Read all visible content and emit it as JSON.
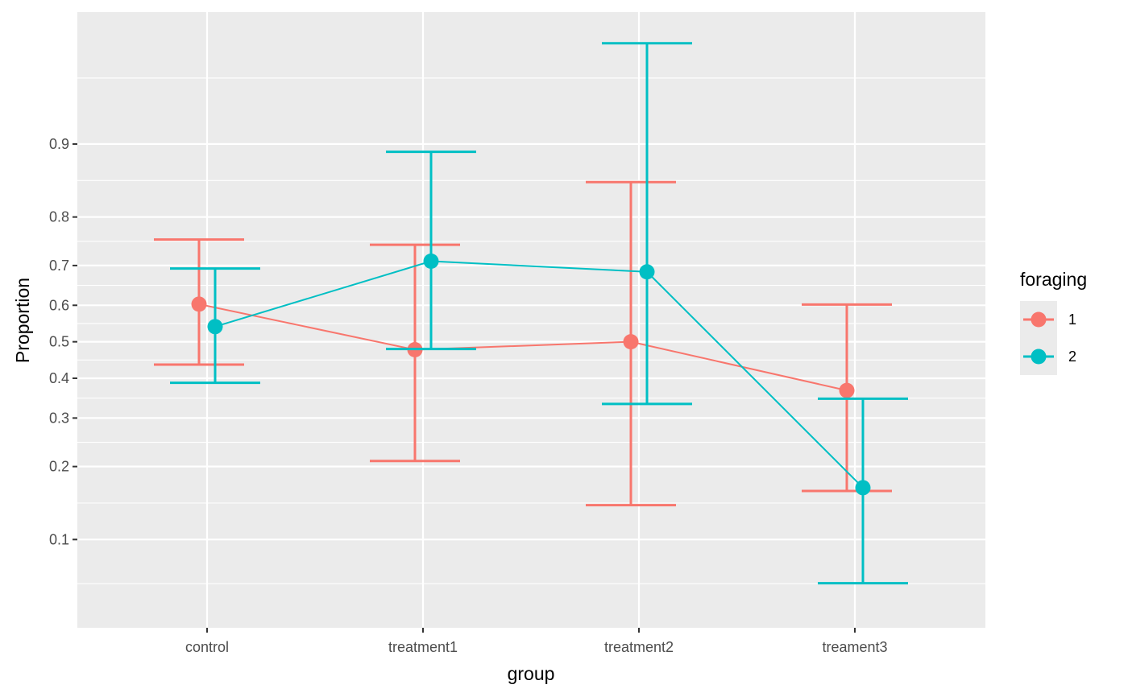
{
  "chart_data": {
    "type": "line",
    "xlabel": "group",
    "ylabel": "Proportion",
    "categories": [
      "control",
      "treatment1",
      "treatment2",
      "treament3"
    ],
    "yscale": "logit",
    "ylim": [
      0.04,
      0.975
    ],
    "yticks": [
      "0.1",
      "0.2",
      "0.3",
      "0.4",
      "0.5",
      "0.6",
      "0.7",
      "0.8",
      "0.9"
    ],
    "grid": true,
    "legend": {
      "title": "foraging",
      "position": "right",
      "entries": [
        "1",
        "2"
      ]
    },
    "series": [
      {
        "name": "1",
        "color": "#F8766D",
        "values": [
          0.603,
          0.478,
          0.5,
          0.368
        ],
        "lower": [
          0.437,
          0.21,
          0.14,
          0.16
        ],
        "upper": [
          0.757,
          0.746,
          0.855,
          0.602
        ]
      },
      {
        "name": "2",
        "color": "#00BFC4",
        "values": [
          0.542,
          0.71,
          0.685,
          0.165
        ],
        "lower": [
          0.388,
          0.48,
          0.334,
          0.064
        ],
        "upper": [
          0.693,
          0.892,
          0.965,
          0.347
        ]
      }
    ]
  }
}
